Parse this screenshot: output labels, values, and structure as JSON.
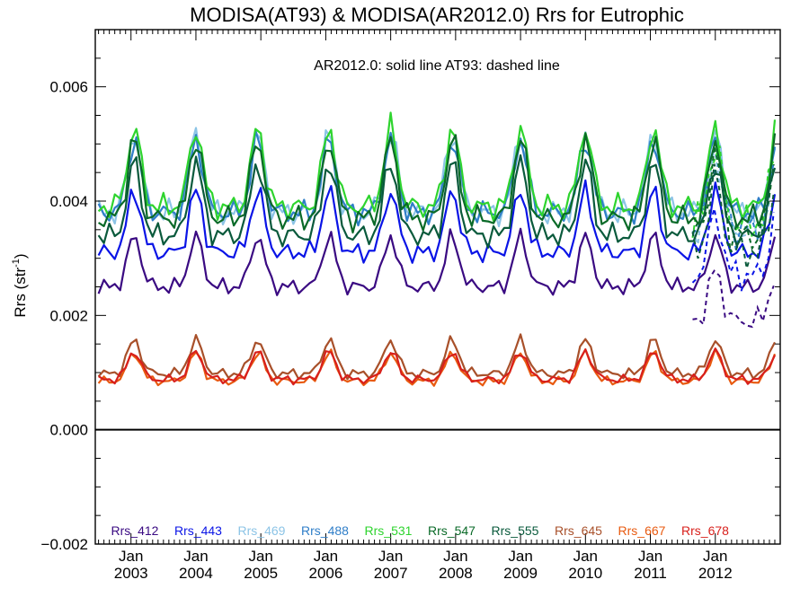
{
  "chart_data": {
    "type": "line",
    "title": "MODISA(AT93) & MODISA(AR2012.0)  Rrs for Eutrophic",
    "annotation": "AR2012.0: solid line   AT93: dashed line",
    "ylabel": "Rrs (str",
    "ylabel_sup": "-1",
    "ylabel_end": ")",
    "ylim": [
      -0.002,
      0.007
    ],
    "xlim": [
      2002.45,
      2013.0
    ],
    "yticks": [
      {
        "value": -0.002,
        "label": "−0.002"
      },
      {
        "value": 0.0,
        "label": "0.000"
      },
      {
        "value": 0.002,
        "label": "0.002"
      },
      {
        "value": 0.004,
        "label": "0.004"
      },
      {
        "value": 0.006,
        "label": "0.006"
      }
    ],
    "xticks": [
      {
        "value": 2003,
        "month": "Jan",
        "year": "2003"
      },
      {
        "value": 2004,
        "month": "Jan",
        "year": "2004"
      },
      {
        "value": 2005,
        "month": "Jan",
        "year": "2005"
      },
      {
        "value": 2006,
        "month": "Jan",
        "year": "2006"
      },
      {
        "value": 2007,
        "month": "Jan",
        "year": "2007"
      },
      {
        "value": 2008,
        "month": "Jan",
        "year": "2008"
      },
      {
        "value": 2009,
        "month": "Jan",
        "year": "2009"
      },
      {
        "value": 2010,
        "month": "Jan",
        "year": "2010"
      },
      {
        "value": 2011,
        "month": "Jan",
        "year": "2011"
      },
      {
        "value": 2012,
        "month": "Jan",
        "year": "2012"
      }
    ],
    "zero_line": 0.0,
    "grid": false,
    "legend_position": "bottom",
    "peaks": [
      2003.05,
      2004.0,
      2004.95,
      2006.05,
      2007.0,
      2007.95,
      2009.0,
      2010.0,
      2011.05,
      2012.0,
      2012.95
    ],
    "series": [
      {
        "name": "Rrs_412",
        "color": "#3a0a82",
        "base": 0.0025,
        "amp": 0.0009,
        "dashed_offset": -0.0006
      },
      {
        "name": "Rrs_443",
        "color": "#0a14e6",
        "base": 0.0031,
        "amp": 0.0011,
        "dashed_offset": -0.0004
      },
      {
        "name": "Rrs_469",
        "color": "#8cc4e6",
        "base": 0.0038,
        "amp": 0.0014,
        "dashed_offset": -0.0003
      },
      {
        "name": "Rrs_488",
        "color": "#2f7ec8",
        "base": 0.0038,
        "amp": 0.0013,
        "dashed_offset": -0.0003
      },
      {
        "name": "Rrs_531",
        "color": "#2ed42e",
        "base": 0.0039,
        "amp": 0.0014,
        "dashed_offset": -0.0003
      },
      {
        "name": "Rrs_547",
        "color": "#0a6a28",
        "base": 0.0037,
        "amp": 0.0014,
        "dashed_offset": -0.0003
      },
      {
        "name": "Rrs_555",
        "color": "#0a5a3c",
        "base": 0.0034,
        "amp": 0.0013,
        "dashed_offset": -0.0003
      },
      {
        "name": "Rrs_645",
        "color": "#a8502a",
        "base": 0.00098,
        "amp": 0.0006,
        "dashed_offset": 0.0
      },
      {
        "name": "Rrs_667",
        "color": "#e85a10",
        "base": 0.00085,
        "amp": 0.0005,
        "dashed_offset": 0.0
      },
      {
        "name": "Rrs_678",
        "color": "#d8201c",
        "base": 0.00088,
        "amp": 0.0005,
        "dashed_offset": 0.0
      }
    ]
  }
}
